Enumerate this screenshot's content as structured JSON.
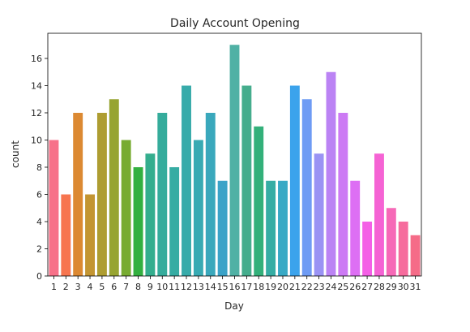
{
  "chart_data": {
    "type": "bar",
    "title": "Daily Account Opening",
    "xlabel": "Day",
    "ylabel": "count",
    "categories": [
      "1",
      "2",
      "3",
      "4",
      "5",
      "6",
      "7",
      "8",
      "9",
      "10",
      "11",
      "12",
      "13",
      "14",
      "15",
      "16",
      "17",
      "18",
      "19",
      "20",
      "21",
      "22",
      "23",
      "24",
      "25",
      "26",
      "27",
      "28",
      "29",
      "30",
      "31"
    ],
    "values": [
      10,
      6,
      12,
      6,
      12,
      13,
      10,
      8,
      9,
      12,
      8,
      14,
      10,
      12,
      7,
      17,
      14,
      11,
      7,
      7,
      14,
      13,
      9,
      15,
      12,
      7,
      4,
      9,
      5,
      4,
      3
    ],
    "colors": [
      "#f77189",
      "#f7754f",
      "#dc8932",
      "#c39532",
      "#ae9d31",
      "#97a431",
      "#77ab31",
      "#33b040",
      "#34ae8e",
      "#35ac9c",
      "#36aca3",
      "#37abaa",
      "#38aab3",
      "#3aa8bc",
      "#3ba3c8",
      "#50b1a5",
      "#45ad8d",
      "#33b07a",
      "#36ada4",
      "#38a9c5",
      "#3ba3ec",
      "#6e9bf4",
      "#9a93f4",
      "#bb83f4",
      "#cc7af4",
      "#dd6ff4",
      "#f45fe6",
      "#f563d4",
      "#f669b7",
      "#f66c9d",
      "#f56c88"
    ],
    "ylim": [
      0,
      17.85
    ],
    "yticks": [
      0,
      2,
      4,
      6,
      8,
      10,
      12,
      14,
      16
    ],
    "grid": false,
    "legend": "none"
  }
}
